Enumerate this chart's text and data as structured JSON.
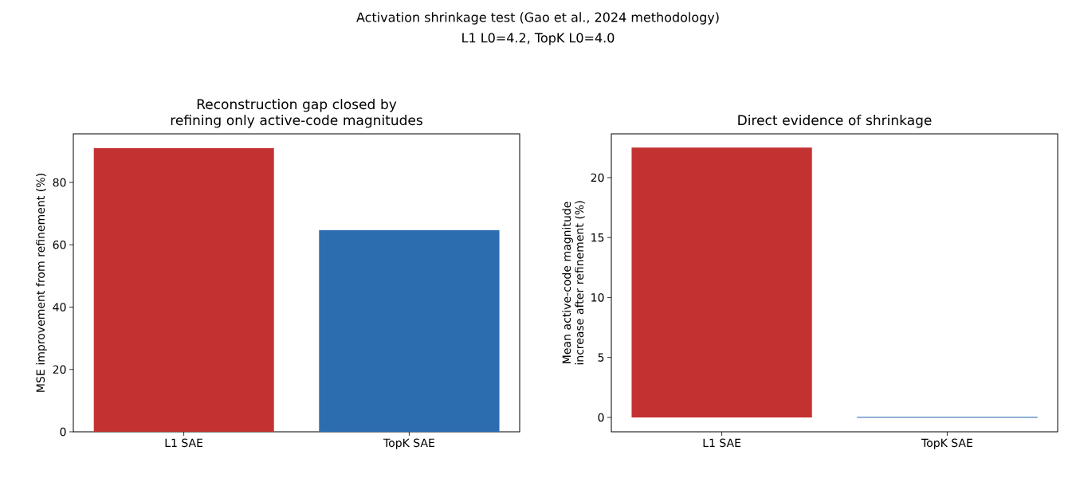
{
  "chart_data": [
    {
      "type": "bar",
      "title": "Reconstruction gap closed by refining only active-code magnitudes",
      "ylabel": "MSE improvement from refinement (%)",
      "annotations": [
        "Activation shrinkage test (Gao et al., 2024 methodology)",
        "L1 L0=4.2, TopK L0=4.0"
      ],
      "categories": [
        "L1 SAE",
        "TopK SAE"
      ],
      "values": [
        91.0,
        64.7
      ],
      "colors": [
        "#c43131",
        "#2c6db0"
      ],
      "ylim": [
        0,
        95.6
      ],
      "yticks": [
        0,
        20,
        40,
        60,
        80
      ],
      "grid": false
    },
    {
      "type": "bar",
      "title": "Direct evidence of shrinkage",
      "ylabel": "Mean active-code magnitude increase after refinement (%)",
      "categories": [
        "L1 SAE",
        "TopK SAE"
      ],
      "values": [
        22.5,
        0.02
      ],
      "colors": [
        "#c43131",
        "#2c6db0"
      ],
      "ylim": [
        -1.2,
        23.65
      ],
      "yticks": [
        0,
        5,
        10,
        15,
        20
      ],
      "grid": false
    }
  ]
}
